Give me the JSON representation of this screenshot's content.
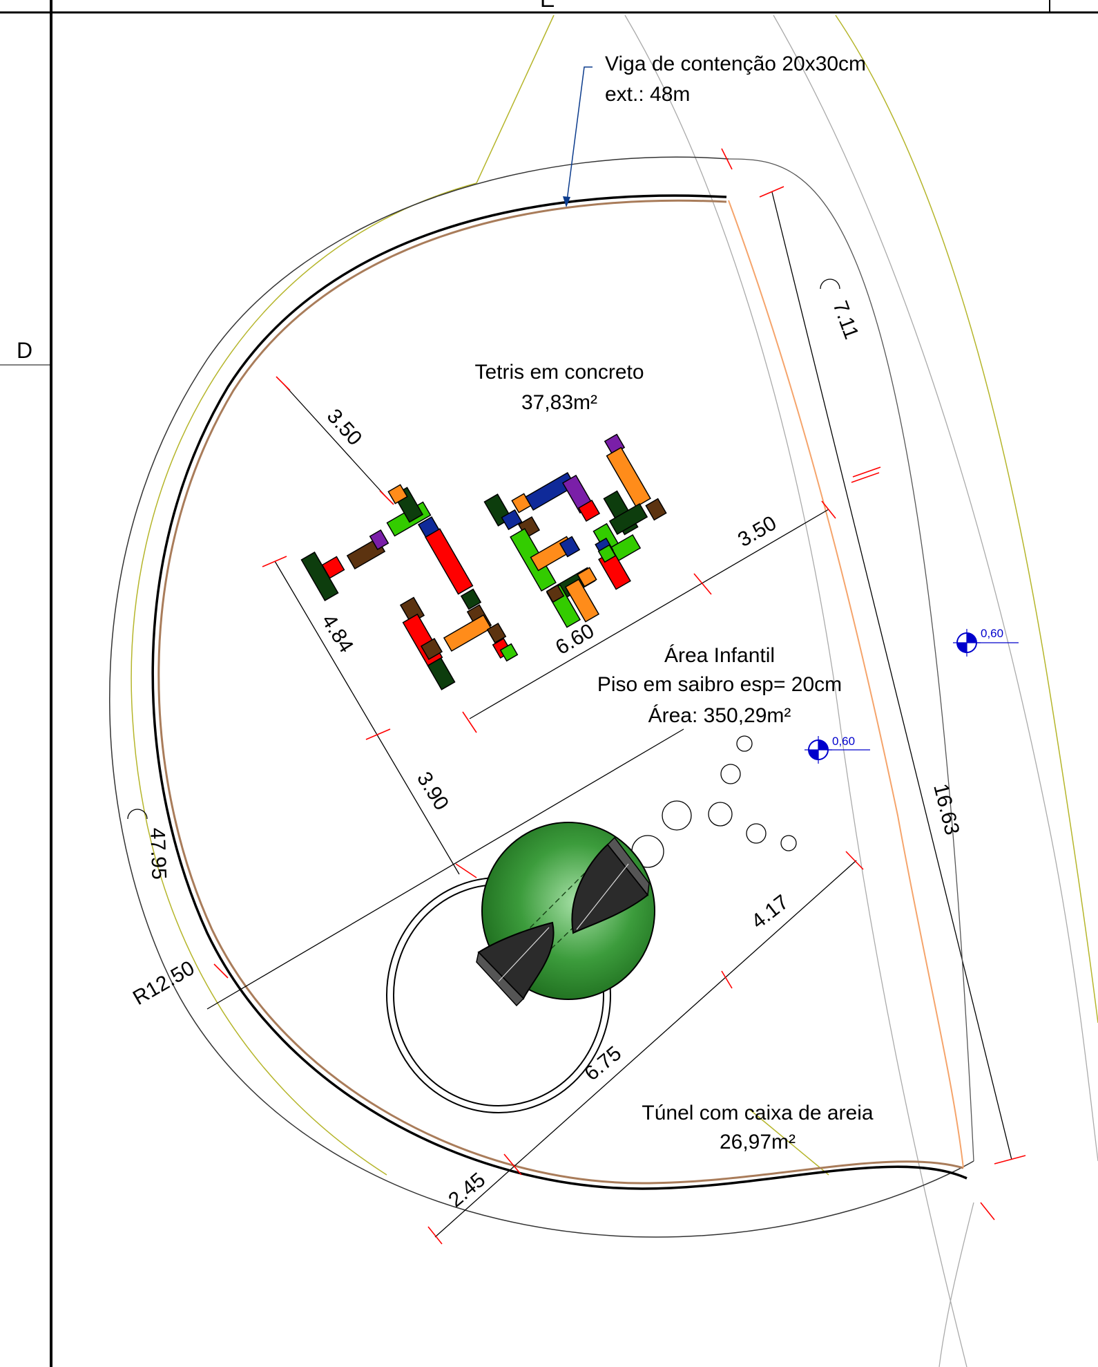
{
  "grid_labels": {
    "top": "E",
    "left": "D"
  },
  "annotations": {
    "beam": {
      "line1": "Viga de contenção 20x30cm",
      "line2": "ext.: 48m"
    },
    "tetris": {
      "line1": "Tetris em concreto",
      "line2": "37,83m²"
    },
    "area": {
      "line1": "Área Infantil",
      "line2": "Piso em saibro esp= 20cm",
      "line3": "Área: 350,29m²"
    },
    "tunnel": {
      "line1": "Túnel com caixa de areia",
      "line2": "26,97m²"
    }
  },
  "dimensions": {
    "d_3_50_a": "3.50",
    "d_3_50_b": "3.50",
    "d_4_84": "4.84",
    "d_6_60": "6.60",
    "d_3_90": "3.90",
    "d_4_17": "4.17",
    "d_6_75": "6.75",
    "d_2_45": "2.45",
    "d_16_63": "16.63",
    "arc_7_11": "7.11",
    "arc_47_95": "47.95",
    "radius": "R12.50"
  },
  "levels": {
    "level_1": "0,60",
    "level_2": "0,60"
  },
  "colors": {
    "red": "#ff0000",
    "green": "#33cc00",
    "dark_green": "#0d3d0d",
    "brown": "#5c3310",
    "orange": "#ff8c1a",
    "blue": "#0f2a99",
    "purple": "#7a1fa8",
    "tunnel_green": "#2e8b2e",
    "level_blue": "#0000cc"
  }
}
